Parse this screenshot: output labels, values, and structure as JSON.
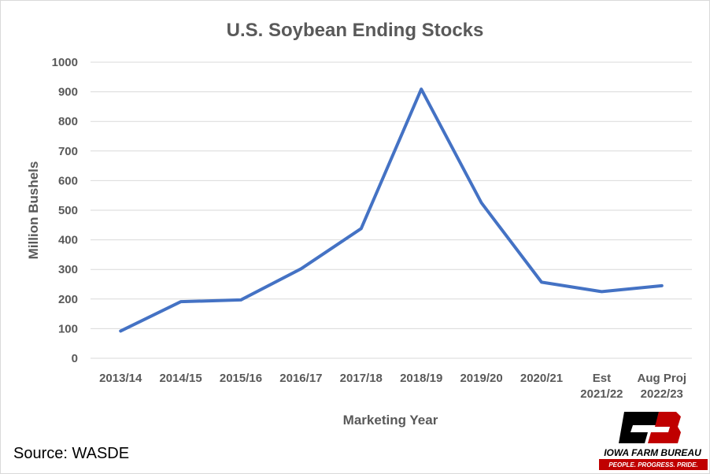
{
  "chart_data": {
    "type": "line",
    "title": "U.S. Soybean Ending Stocks",
    "xlabel": "Marketing Year",
    "ylabel": "Million Bushels",
    "categories": [
      [
        "2013/14"
      ],
      [
        "2014/15"
      ],
      [
        "2015/16"
      ],
      [
        "2016/17"
      ],
      [
        "2017/18"
      ],
      [
        "2018/19"
      ],
      [
        "2019/20"
      ],
      [
        "2020/21"
      ],
      [
        "Est",
        "2021/22"
      ],
      [
        "Aug Proj",
        "2022/23"
      ]
    ],
    "series": [
      {
        "values": [
          92,
          191,
          197,
          302,
          438,
          909,
          525,
          257,
          225,
          245
        ]
      }
    ],
    "ylim": [
      0,
      1000
    ],
    "yticks": [
      0,
      100,
      200,
      300,
      400,
      500,
      600,
      700,
      800,
      900,
      1000
    ],
    "grid": true,
    "line_color": "#4472c4"
  },
  "footer": {
    "source": "Source: WASDE"
  },
  "logo": {
    "name": "IOWA FARM BUREAU",
    "tagline": "PEOPLE. PROGRESS. PRIDE."
  }
}
